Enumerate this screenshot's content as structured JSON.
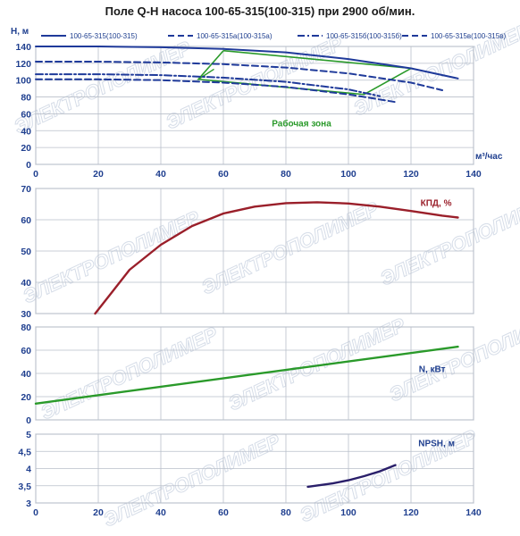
{
  "title": "Поле Q-H насоса 100-65-315(100-315) при 2900 об/мин.",
  "watermark": "ЭЛЕКТРОПОЛИМЕР",
  "chart_data": [
    {
      "id": "qh",
      "type": "line",
      "ylabel": "H, м",
      "xlabel": "м³/час",
      "xlim": [
        0,
        140
      ],
      "ylim": [
        0,
        140
      ],
      "xticks": [
        "0",
        "20",
        "40",
        "60",
        "80",
        "100",
        "120",
        "140"
      ],
      "yticks": [
        "0",
        "20",
        "40",
        "60",
        "80",
        "100",
        "120",
        "140"
      ],
      "grid": true,
      "legend_position": "top",
      "annotation": "Рабочая зона",
      "series": [
        {
          "name": "100-65-315(100-315)",
          "color": "#1f3a9a",
          "dash": "solid",
          "x": [
            0,
            20,
            40,
            60,
            80,
            100,
            120,
            135
          ],
          "y": [
            140,
            140,
            139,
            137,
            133,
            125,
            114,
            102
          ]
        },
        {
          "name": "100-65-315а(100-315а)",
          "color": "#1f3a9a",
          "dash": "dash",
          "x": [
            0,
            20,
            40,
            60,
            80,
            100,
            120,
            130
          ],
          "y": [
            122,
            122,
            121,
            119,
            115,
            108,
            97,
            88
          ]
        },
        {
          "name": "100-65-315б(100-315б)",
          "color": "#1f3a9a",
          "dash": "dashdot",
          "x": [
            0,
            20,
            40,
            60,
            80,
            100,
            110
          ],
          "y": [
            107,
            107,
            106,
            103,
            98,
            89,
            81
          ]
        },
        {
          "name": "100-65-315в(100-315в)",
          "color": "#1f3a9a",
          "dash": "dash",
          "x": [
            0,
            20,
            40,
            60,
            80,
            100,
            115
          ],
          "y": [
            101,
            101,
            100,
            97,
            92,
            83,
            74
          ]
        }
      ],
      "work_zone": {
        "color": "#2a9a2a",
        "x": [
          60,
          120,
          105,
          52,
          60
        ],
        "y": [
          135,
          114,
          83,
          101,
          135
        ]
      }
    },
    {
      "id": "eff",
      "type": "line",
      "xlim": [
        0,
        140
      ],
      "ylim": [
        30,
        70
      ],
      "yticks": [
        "30",
        "40",
        "50",
        "60",
        "70"
      ],
      "grid": true,
      "annotation": "КПД, %",
      "series": [
        {
          "name": "КПД, %",
          "color": "#9a1f2a",
          "x": [
            19,
            30,
            40,
            50,
            60,
            70,
            80,
            90,
            100,
            110,
            120,
            130,
            135
          ],
          "y": [
            30,
            44,
            52,
            58,
            62,
            64.2,
            65.3,
            65.6,
            65.2,
            64.2,
            62.8,
            61.3,
            60.7
          ]
        }
      ]
    },
    {
      "id": "power",
      "type": "line",
      "xlim": [
        0,
        140
      ],
      "ylim": [
        0,
        80
      ],
      "yticks": [
        "0",
        "20",
        "40",
        "60",
        "80"
      ],
      "grid": true,
      "annotation": "N, кВт",
      "series": [
        {
          "name": "N, кВт",
          "color": "#2a9a2a",
          "x": [
            0,
            135
          ],
          "y": [
            14,
            63
          ]
        }
      ]
    },
    {
      "id": "npsh",
      "type": "line",
      "xlim": [
        0,
        140
      ],
      "ylim": [
        3,
        5
      ],
      "xticks": [
        "0",
        "20",
        "40",
        "60",
        "80",
        "100",
        "120",
        "140"
      ],
      "yticks": [
        "3",
        "3,5",
        "4",
        "4,5",
        "5"
      ],
      "grid": true,
      "annotation": "NPSH, м",
      "series": [
        {
          "name": "NPSH, м",
          "color": "#2a1f6a",
          "x": [
            87,
            95,
            100,
            105,
            110,
            115
          ],
          "y": [
            3.47,
            3.57,
            3.66,
            3.78,
            3.92,
            4.1
          ]
        }
      ]
    }
  ]
}
